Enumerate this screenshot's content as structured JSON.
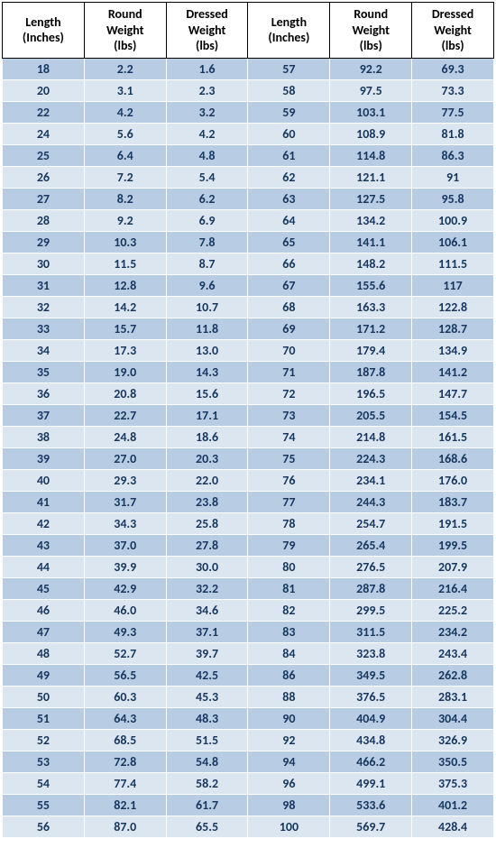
{
  "table": {
    "columns": [
      "Length\n(Inches)",
      "Round\nWeight\n(lbs)",
      "Dressed\nWeight\n(lbs)",
      "Length\n(Inches)",
      "Round\nWeight\n(lbs)",
      "Dressed\nWeight\n(lbs)"
    ],
    "column_widths": [
      "16.6%",
      "16.6%",
      "16.6%",
      "16.6%",
      "16.6%",
      "16.6%"
    ],
    "header_bg": "#ffffff",
    "header_fg": "#000000",
    "header_border": "#000000",
    "row_odd_bg": "#b8cce4",
    "row_even_bg": "#dce6f1",
    "cell_fg": "#17375e",
    "cell_border": "#ffffff",
    "font_family": "Calibri, Arial, sans-serif",
    "header_fontsize": 14,
    "cell_fontsize": 14,
    "cell_fontweight": "bold",
    "rows": [
      [
        "18",
        "2.2",
        "1.6",
        "57",
        "92.2",
        "69.3"
      ],
      [
        "20",
        "3.1",
        "2.3",
        "58",
        "97.5",
        "73.3"
      ],
      [
        "22",
        "4.2",
        "3.2",
        "59",
        "103.1",
        "77.5"
      ],
      [
        "24",
        "5.6",
        "4.2",
        "60",
        "108.9",
        "81.8"
      ],
      [
        "25",
        "6.4",
        "4.8",
        "61",
        "114.8",
        "86.3"
      ],
      [
        "26",
        "7.2",
        "5.4",
        "62",
        "121.1",
        "91"
      ],
      [
        "27",
        "8.2",
        "6.2",
        "63",
        "127.5",
        "95.8"
      ],
      [
        "28",
        "9.2",
        "6.9",
        "64",
        "134.2",
        "100.9"
      ],
      [
        "29",
        "10.3",
        "7.8",
        "65",
        "141.1",
        "106.1"
      ],
      [
        "30",
        "11.5",
        "8.7",
        "66",
        "148.2",
        "111.5"
      ],
      [
        "31",
        "12.8",
        "9.6",
        "67",
        "155.6",
        "117"
      ],
      [
        "32",
        "14.2",
        "10.7",
        "68",
        "163.3",
        "122.8"
      ],
      [
        "33",
        "15.7",
        "11.8",
        "69",
        "171.2",
        "128.7"
      ],
      [
        "34",
        "17.3",
        "13.0",
        "70",
        "179.4",
        "134.9"
      ],
      [
        "35",
        "19.0",
        "14.3",
        "71",
        "187.8",
        "141.2"
      ],
      [
        "36",
        "20.8",
        "15.6",
        "72",
        "196.5",
        "147.7"
      ],
      [
        "37",
        "22.7",
        "17.1",
        "73",
        "205.5",
        "154.5"
      ],
      [
        "38",
        "24.8",
        "18.6",
        "74",
        "214.8",
        "161.5"
      ],
      [
        "39",
        "27.0",
        "20.3",
        "75",
        "224.3",
        "168.6"
      ],
      [
        "40",
        "29.3",
        "22.0",
        "76",
        "234.1",
        "176.0"
      ],
      [
        "41",
        "31.7",
        "23.8",
        "77",
        "244.3",
        "183.7"
      ],
      [
        "42",
        "34.3",
        "25.8",
        "78",
        "254.7",
        "191.5"
      ],
      [
        "43",
        "37.0",
        "27.8",
        "79",
        "265.4",
        "199.5"
      ],
      [
        "44",
        "39.9",
        "30.0",
        "80",
        "276.5",
        "207.9"
      ],
      [
        "45",
        "42.9",
        "32.2",
        "81",
        "287.8",
        "216.4"
      ],
      [
        "46",
        "46.0",
        "34.6",
        "82",
        "299.5",
        "225.2"
      ],
      [
        "47",
        "49.3",
        "37.1",
        "83",
        "311.5",
        "234.2"
      ],
      [
        "48",
        "52.7",
        "39.7",
        "84",
        "323.8",
        "243.4"
      ],
      [
        "49",
        "56.5",
        "42.5",
        "86",
        "349.5",
        "262.8"
      ],
      [
        "50",
        "60.3",
        "45.3",
        "88",
        "376.5",
        "283.1"
      ],
      [
        "51",
        "64.3",
        "48.3",
        "90",
        "404.9",
        "304.4"
      ],
      [
        "52",
        "68.5",
        "51.5",
        "92",
        "434.8",
        "326.9"
      ],
      [
        "53",
        "72.8",
        "54.8",
        "94",
        "466.2",
        "350.5"
      ],
      [
        "54",
        "77.4",
        "58.2",
        "96",
        "499.1",
        "375.3"
      ],
      [
        "55",
        "82.1",
        "61.7",
        "98",
        "533.6",
        "401.2"
      ],
      [
        "56",
        "87.0",
        "65.5",
        "100",
        "569.7",
        "428.4"
      ]
    ]
  }
}
